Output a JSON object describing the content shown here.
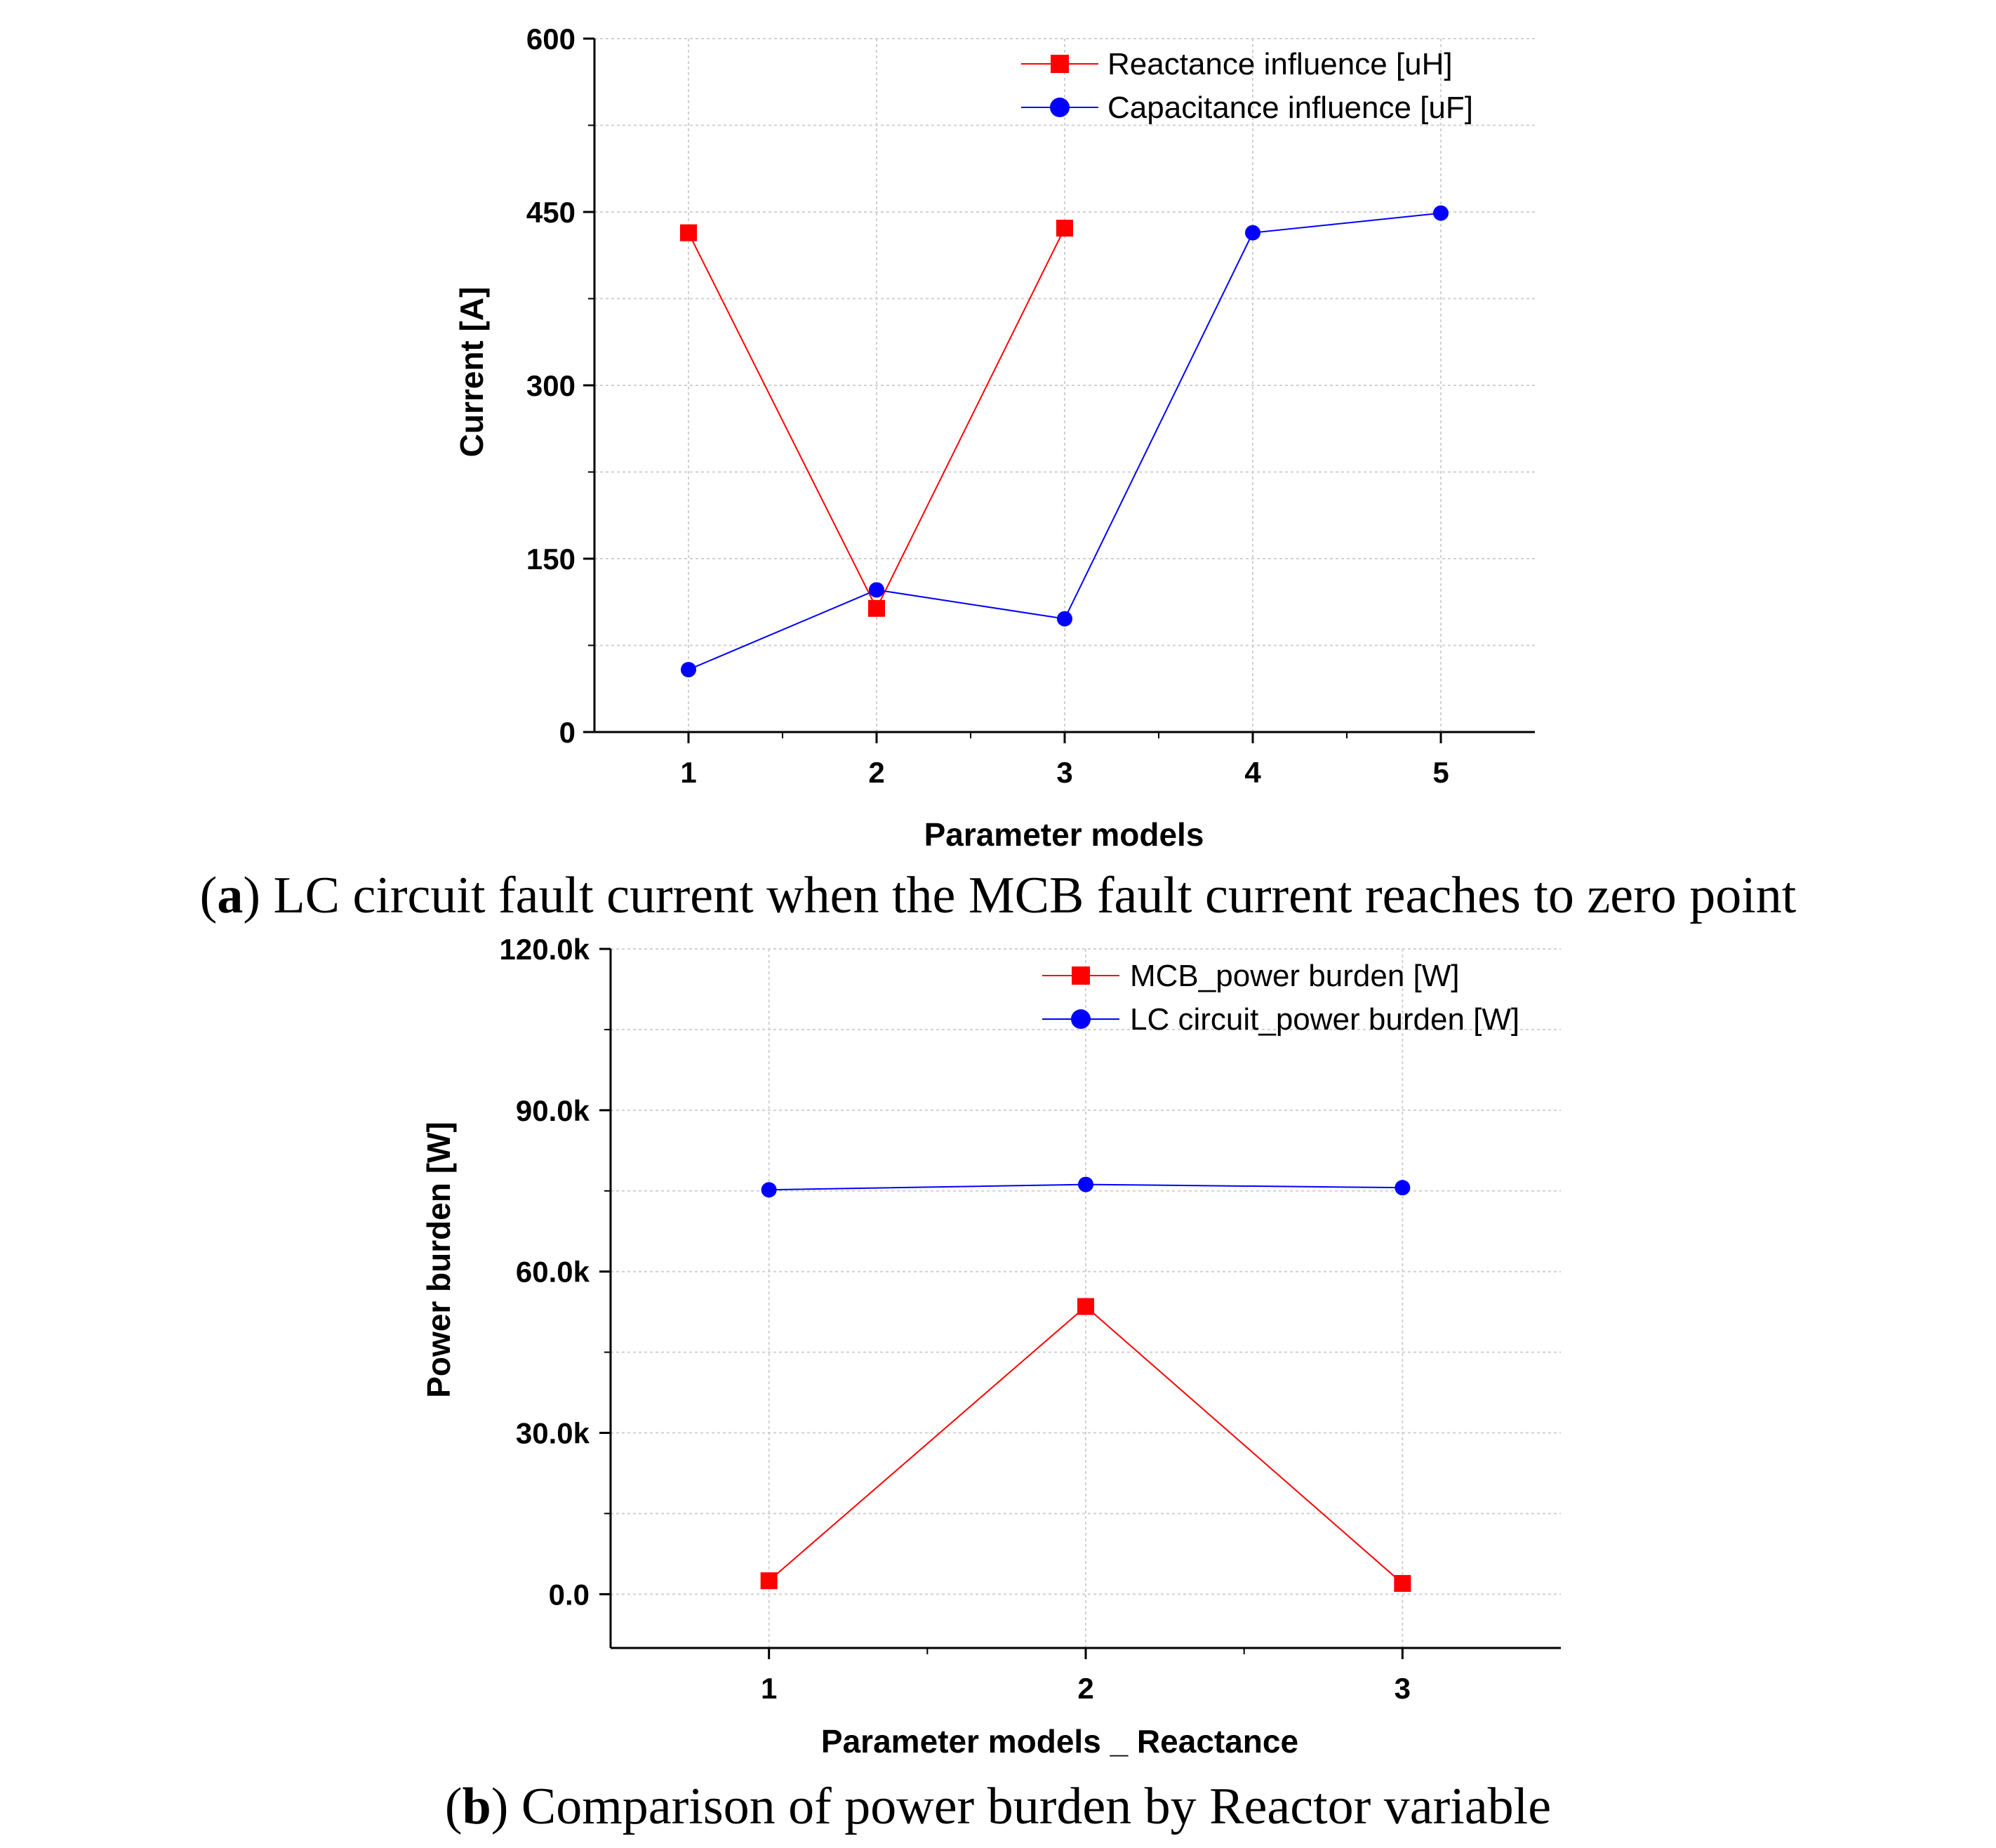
{
  "chart_data": [
    {
      "type": "line",
      "id": "a",
      "caption_prefix": "(",
      "caption_letter": "a",
      "caption_text": ") LC circuit fault current when the MCB fault current reaches to zero point",
      "xlabel": "Parameter models",
      "ylabel": "Current [A]",
      "xlim": [
        0.5,
        5.5
      ],
      "ylim": [
        0,
        600
      ],
      "xticks": [
        1,
        2,
        3,
        4,
        5
      ],
      "xtick_labels": [
        "1",
        "2",
        "3",
        "4",
        "5"
      ],
      "yticks": [
        0,
        150,
        300,
        450,
        600
      ],
      "ytick_labels": [
        "0",
        "150",
        "300",
        "450",
        "600"
      ],
      "grid": true,
      "legend_position": "top-right",
      "series": [
        {
          "name": "Reactance influence [uH]",
          "color": "#ff0000",
          "marker": "square",
          "x": [
            1,
            2,
            3
          ],
          "values": [
            432,
            107,
            436
          ]
        },
        {
          "name": "Capacitance influence [uF]",
          "color": "#0000ff",
          "marker": "circle",
          "x": [
            1,
            2,
            3,
            4,
            5
          ],
          "values": [
            54,
            123,
            98,
            432,
            449
          ]
        }
      ]
    },
    {
      "type": "line",
      "id": "b",
      "caption_prefix": "(",
      "caption_letter": "b",
      "caption_text": ") Comparison of power burden by Reactor variable",
      "xlabel": "Parameter models _ Reactance",
      "ylabel": "Power burden [W]",
      "xlim": [
        0.5,
        3.5
      ],
      "ylim": [
        -10000,
        120000
      ],
      "xticks": [
        1,
        2,
        3
      ],
      "xtick_labels": [
        "1",
        "2",
        "3"
      ],
      "yticks": [
        0,
        30000,
        60000,
        90000,
        120000
      ],
      "ytick_labels": [
        "0.0",
        "30.0k",
        "60.0k",
        "90.0k",
        "120.0k"
      ],
      "grid": true,
      "legend_position": "top-right",
      "series": [
        {
          "name": "MCB_power burden [W]",
          "color": "#ff0000",
          "marker": "square",
          "x": [
            1,
            2,
            3
          ],
          "values": [
            2500,
            53500,
            2000
          ]
        },
        {
          "name": "LC circuit_power burden [W]",
          "color": "#0000ff",
          "marker": "circle",
          "x": [
            1,
            2,
            3
          ],
          "values": [
            75200,
            76200,
            75600
          ]
        }
      ]
    }
  ]
}
